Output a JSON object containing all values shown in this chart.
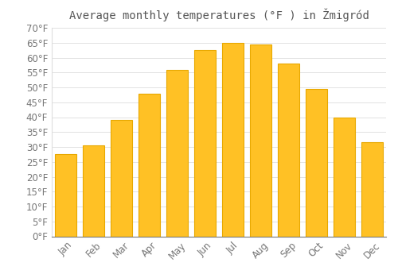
{
  "title": "Average monthly temperatures (°F ) in Žmigród",
  "months": [
    "Jan",
    "Feb",
    "Mar",
    "Apr",
    "May",
    "Jun",
    "Jul",
    "Aug",
    "Sep",
    "Oct",
    "Nov",
    "Dec"
  ],
  "values": [
    27.5,
    30.5,
    39.0,
    48.0,
    56.0,
    62.5,
    65.0,
    64.5,
    58.0,
    49.5,
    40.0,
    31.5
  ],
  "bar_color": "#FFC125",
  "bar_edge_color": "#E8A800",
  "background_color": "#FFFFFF",
  "grid_color": "#DDDDDD",
  "text_color": "#777777",
  "ylim": [
    0,
    70
  ],
  "ytick_step": 5,
  "title_fontsize": 10,
  "tick_fontsize": 8.5
}
